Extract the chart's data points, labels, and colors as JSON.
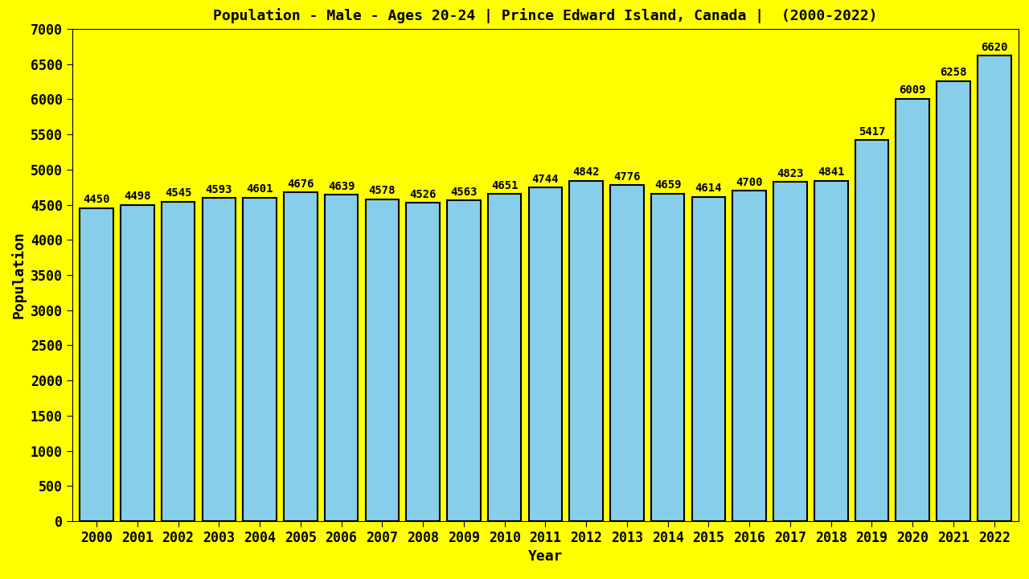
{
  "title": "Population - Male - Ages 20-24 | Prince Edward Island, Canada |  (2000-2022)",
  "xlabel": "Year",
  "ylabel": "Population",
  "background_color": "#ffff00",
  "bar_color": "#87ceeb",
  "bar_edge_color": "#000000",
  "years": [
    2000,
    2001,
    2002,
    2003,
    2004,
    2005,
    2006,
    2007,
    2008,
    2009,
    2010,
    2011,
    2012,
    2013,
    2014,
    2015,
    2016,
    2017,
    2018,
    2019,
    2020,
    2021,
    2022
  ],
  "values": [
    4450,
    4498,
    4545,
    4593,
    4601,
    4676,
    4639,
    4578,
    4526,
    4563,
    4651,
    4744,
    4842,
    4776,
    4659,
    4614,
    4700,
    4823,
    4841,
    5417,
    6009,
    6258,
    6620
  ],
  "ylim": [
    0,
    7000
  ],
  "yticks": [
    0,
    500,
    1000,
    1500,
    2000,
    2500,
    3000,
    3500,
    4000,
    4500,
    5000,
    5500,
    6000,
    6500,
    7000
  ],
  "title_fontsize": 13,
  "axis_label_fontsize": 13,
  "tick_fontsize": 12,
  "value_label_fontsize": 10,
  "bar_width": 0.82
}
